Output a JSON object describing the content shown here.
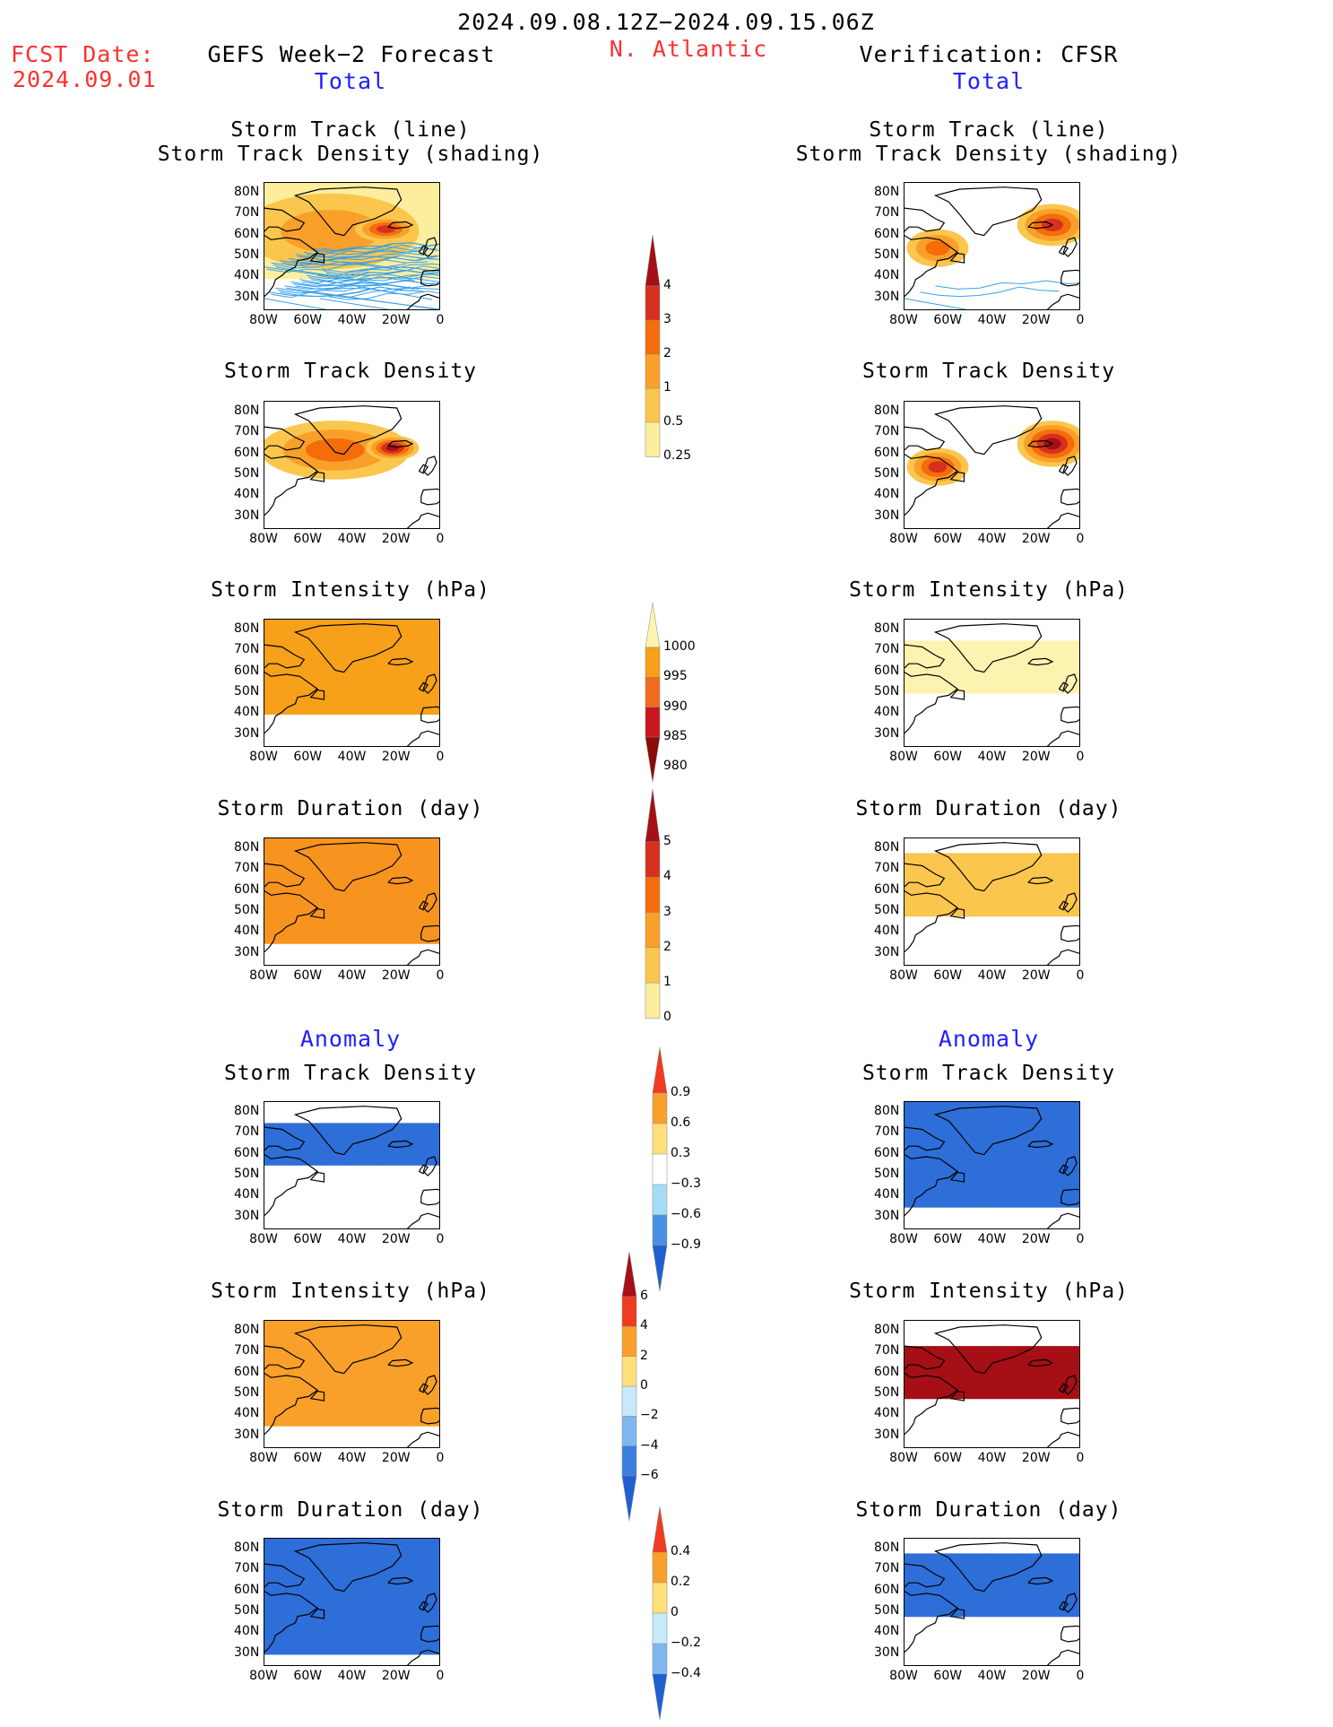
{
  "header": {
    "dates": "2024.09.08.12Z−2024.09.15.06Z",
    "fcst_label": "FCST Date:",
    "fcst_date": "2024.09.01",
    "left_title": "GEFS Week−2 Forecast",
    "region": "N. Atlantic",
    "right_title": "Verification: CFSR",
    "total_left": "Total",
    "total_right": "Total",
    "anomaly_left": "Anomaly",
    "anomaly_right": "Anomaly"
  },
  "panel_titles": {
    "track_line": "Storm Track (line)",
    "track_density_shading": "Storm Track Density (shading)",
    "track_density": "Storm Track Density",
    "intensity": "Storm Intensity (hPa)",
    "duration": "Storm Duration (day)"
  },
  "axes": {
    "lat_labels": [
      "80N",
      "70N",
      "60N",
      "50N",
      "40N",
      "30N"
    ],
    "lon_labels": [
      "80W",
      "60W",
      "40W",
      "20W",
      "0"
    ]
  },
  "colorbars": {
    "track_density": {
      "labels": [
        "4",
        "3",
        "2",
        "1",
        "0.5",
        "0.25"
      ],
      "colors": [
        "#a50f15",
        "#d7301f",
        "#f46d0a",
        "#f9a02a",
        "#fbc64d",
        "#fdee9e"
      ]
    },
    "intensity": {
      "labels": [
        "1000",
        "995",
        "990",
        "985",
        "980"
      ],
      "colors": [
        "#fdf3b0",
        "#f7a019",
        "#f06b1c",
        "#c8171c",
        "#8c0a0a"
      ]
    },
    "duration": {
      "labels": [
        "5",
        "4",
        "3",
        "2",
        "1",
        "0"
      ],
      "colors": [
        "#a50f15",
        "#d7301f",
        "#f46d0a",
        "#f9a02a",
        "#fbc64d",
        "#fdee9e"
      ]
    },
    "anom_density": {
      "labels": [
        "0.9",
        "0.6",
        "0.3",
        "−0.3",
        "−0.6",
        "−0.9"
      ],
      "colors": [
        "#f03b20",
        "#f9a02a",
        "#fde07a",
        "#ffffff",
        "#a6dcf5",
        "#4a90e2",
        "#1f5fd0"
      ]
    },
    "anom_intensity": {
      "labels": [
        "6",
        "4",
        "2",
        "0",
        "−2",
        "−4",
        "−6"
      ],
      "colors": [
        "#a50f15",
        "#f03b20",
        "#f9a02a",
        "#fde07a",
        "#c6eafa",
        "#7fb8f0",
        "#3a7ee0",
        "#1f5fd0"
      ]
    },
    "anom_duration": {
      "labels": [
        "0.4",
        "0.2",
        "0",
        "−0.2",
        "−0.4"
      ],
      "colors": [
        "#f03b20",
        "#f9a02a",
        "#fde07a",
        "#c6eafa",
        "#7fb8f0",
        "#1f5fd0"
      ]
    }
  },
  "panels": [
    {
      "id": "f1",
      "side": "forecast",
      "title_key": "track_line",
      "variable": "Storm Track Density + Tracks",
      "blobs": [
        {
          "lon": -50,
          "lat": 62,
          "lonr": 40,
          "latr": 18,
          "level": 1
        },
        {
          "lon": -25,
          "lat": 63,
          "lonr": 14,
          "latr": 6,
          "level": 3
        }
      ],
      "tracks": true,
      "bg": "#fdee9e"
    },
    {
      "id": "v1",
      "side": "verification",
      "title_key": "track_line",
      "variable": "Storm Track Density + Tracks",
      "blobs": [
        {
          "lon": -65,
          "lat": 54,
          "lonr": 14,
          "latr": 9,
          "level": 2
        },
        {
          "lon": -13,
          "lat": 65,
          "lonr": 16,
          "latr": 10,
          "level": 3
        }
      ],
      "tracks": true
    },
    {
      "id": "f2",
      "side": "forecast",
      "title_key": "track_density",
      "variable": "Storm Track Density",
      "blobs": [
        {
          "lon": -48,
          "lat": 62,
          "lonr": 34,
          "latr": 14,
          "level": 2
        },
        {
          "lon": -22,
          "lat": 63,
          "lonr": 12,
          "latr": 6,
          "level": 4
        }
      ]
    },
    {
      "id": "v2",
      "side": "verification",
      "title_key": "track_density",
      "variable": "Storm Track Density",
      "blobs": [
        {
          "lon": -65,
          "lat": 54,
          "lonr": 14,
          "latr": 9,
          "level": 3
        },
        {
          "lon": -13,
          "lat": 65,
          "lonr": 16,
          "latr": 11,
          "level": 4
        }
      ]
    },
    {
      "id": "f3",
      "side": "forecast",
      "title_key": "intensity",
      "variable": "Storm Intensity",
      "cells_color": "#f7a019",
      "cells": {
        "latmin": 40,
        "latmax": 82,
        "lonmin": -80,
        "lonmax": 0
      }
    },
    {
      "id": "v3",
      "side": "verification",
      "title_key": "intensity",
      "variable": "Storm Intensity",
      "cells_color": "#fdf3b0",
      "cells": {
        "latmin": 50,
        "latmax": 75,
        "lonmin": -80,
        "lonmax": 0
      }
    },
    {
      "id": "f4",
      "side": "forecast",
      "title_key": "duration",
      "variable": "Storm Duration",
      "cells_color": "#f79420",
      "cells": {
        "latmin": 35,
        "latmax": 82,
        "lonmin": -80,
        "lonmax": 0
      }
    },
    {
      "id": "v4",
      "side": "verification",
      "title_key": "duration",
      "variable": "Storm Duration",
      "cells_color": "#fbc64d",
      "cells": {
        "latmin": 48,
        "latmax": 75,
        "lonmin": -80,
        "lonmax": 0
      }
    },
    {
      "id": "f5",
      "side": "forecast",
      "title_key": "track_density",
      "variable": "Anomaly Storm Track Density",
      "cells_color": "#2e6ed8",
      "cells": {
        "latmin": 55,
        "latmax": 72,
        "lonmin": -80,
        "lonmax": 0
      }
    },
    {
      "id": "v5",
      "side": "verification",
      "title_key": "track_density",
      "variable": "Anomaly Storm Track Density",
      "cells_color": "#2e6ed8",
      "cells": {
        "latmin": 35,
        "latmax": 82,
        "lonmin": -80,
        "lonmax": 0
      }
    },
    {
      "id": "f6",
      "side": "forecast",
      "title_key": "intensity",
      "variable": "Anomaly Storm Intensity",
      "cells_color": "#f9a02a",
      "cells": {
        "latmin": 35,
        "latmax": 82,
        "lonmin": -80,
        "lonmax": 0
      }
    },
    {
      "id": "v6",
      "side": "verification",
      "title_key": "intensity",
      "variable": "Anomaly Storm Intensity",
      "cells_color": "#a50f15",
      "cells": {
        "latmin": 48,
        "latmax": 72,
        "lonmin": -80,
        "lonmax": 0
      }
    },
    {
      "id": "f7",
      "side": "forecast",
      "title_key": "duration",
      "variable": "Anomaly Storm Duration",
      "cells_color": "#2e6ed8",
      "cells": {
        "latmin": 30,
        "latmax": 82,
        "lonmin": -80,
        "lonmax": 0
      }
    },
    {
      "id": "v7",
      "side": "verification",
      "title_key": "duration",
      "variable": "Anomaly Storm Duration",
      "cells_color": "#2e6ed8",
      "cells": {
        "latmin": 48,
        "latmax": 75,
        "lonmin": -80,
        "lonmax": 0
      }
    }
  ]
}
